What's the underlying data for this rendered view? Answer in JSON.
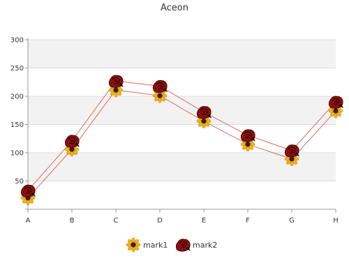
{
  "chart_data": {
    "type": "line",
    "title": "Aceon",
    "categories": [
      "A",
      "B",
      "C",
      "D",
      "E",
      "F",
      "G",
      "H"
    ],
    "ylim": [
      0,
      300
    ],
    "yticks": [
      50,
      100,
      150,
      200,
      250,
      300
    ],
    "grid": true,
    "legend_position": "bottom",
    "series": [
      {
        "name": "mark1",
        "values": [
          20,
          106,
          211,
          201,
          156,
          115,
          89,
          174
        ],
        "color": "#d86b5e",
        "marker": "sunflower-icon"
      },
      {
        "name": "mark2",
        "values": [
          33,
          121,
          227,
          218,
          172,
          131,
          104,
          190
        ],
        "color": "#d86b5e",
        "marker": "rose-icon"
      }
    ]
  }
}
